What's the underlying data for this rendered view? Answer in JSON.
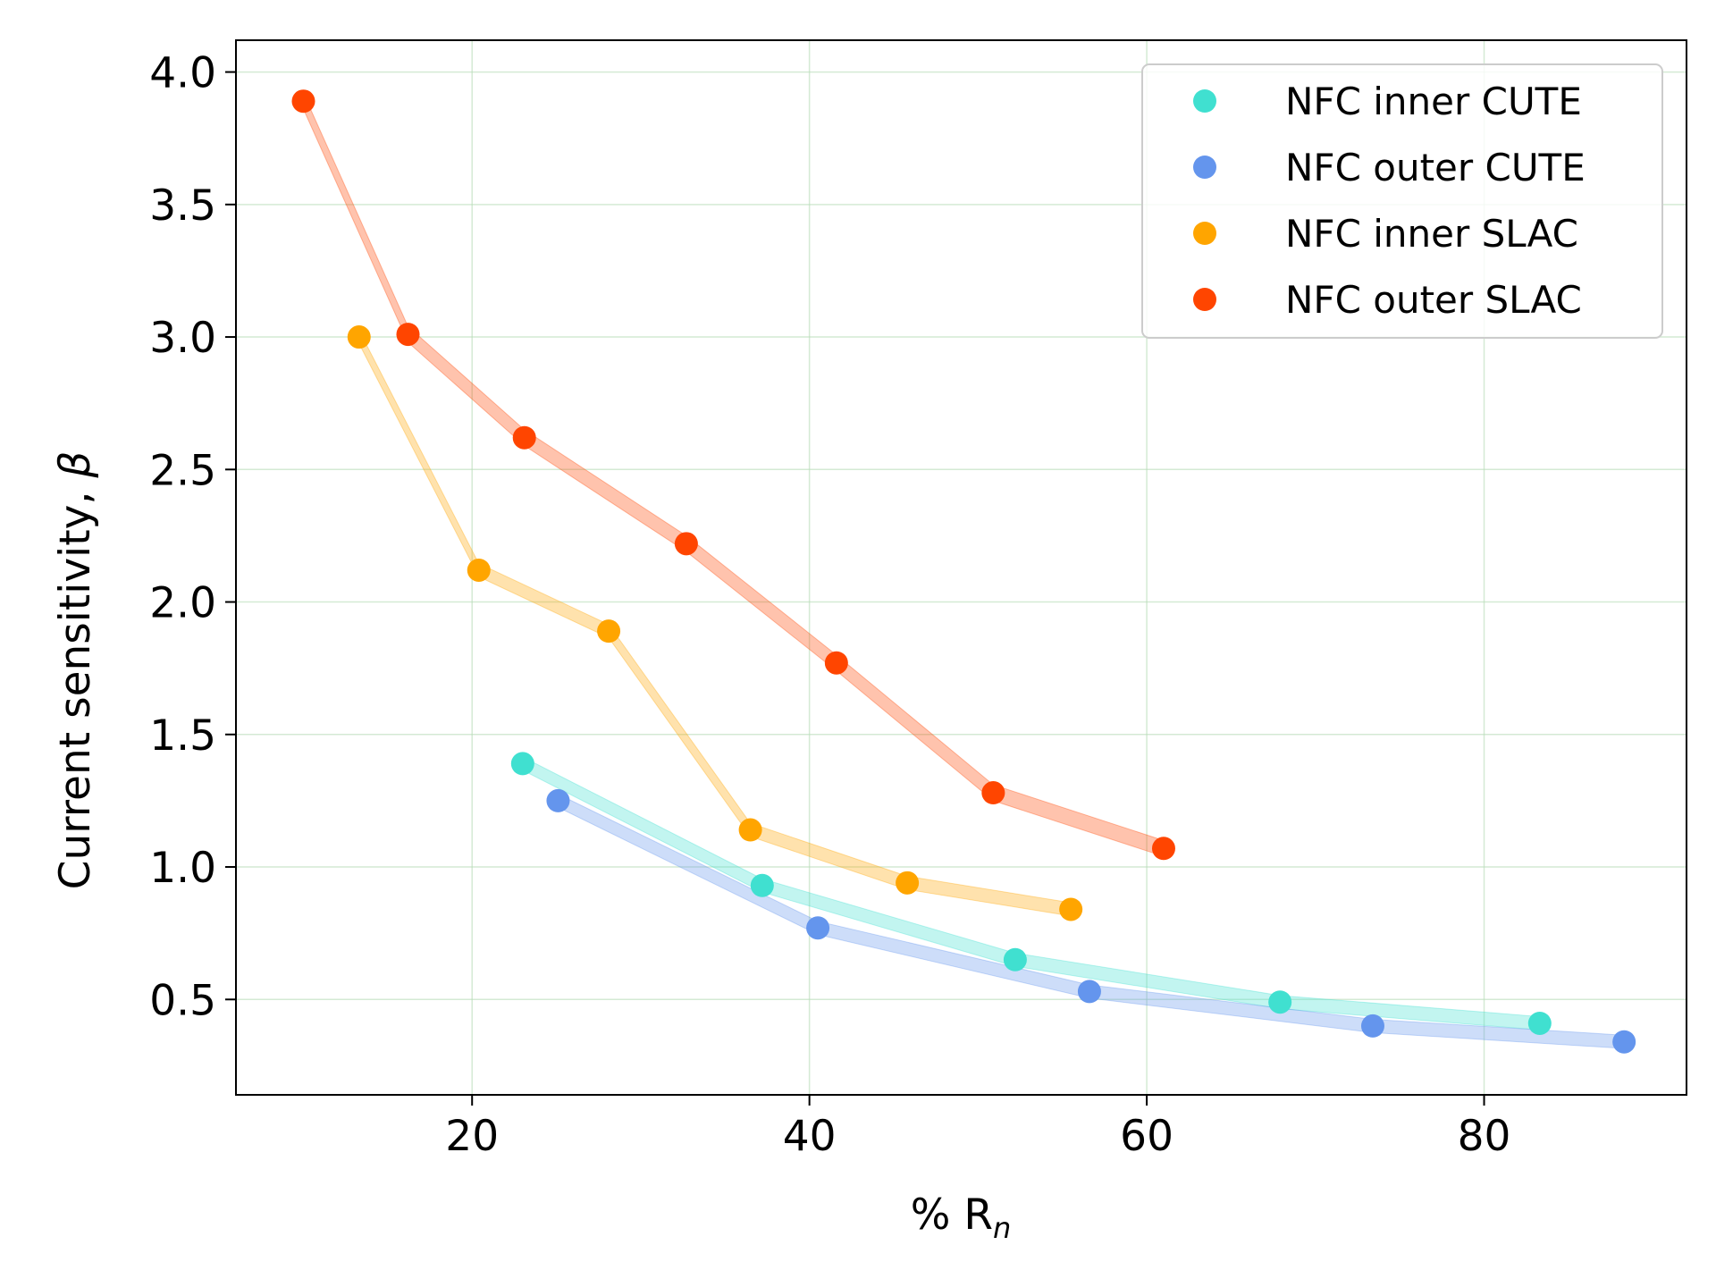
{
  "chart_data": {
    "type": "scatter",
    "title": "",
    "xlabel": "% R",
    "xlabel_subscript": "n",
    "ylabel": "Current sensitivity, ",
    "ylabel_symbol": "β",
    "xlim": [
      6,
      92
    ],
    "ylim": [
      0.14,
      4.12
    ],
    "xticks": [
      20,
      40,
      60,
      80
    ],
    "xtick_labels": [
      "20",
      "40",
      "60",
      "80"
    ],
    "yticks": [
      0.5,
      1.0,
      1.5,
      2.0,
      2.5,
      3.0,
      3.5,
      4.0
    ],
    "ytick_labels": [
      "0.5",
      "1.0",
      "1.5",
      "2.0",
      "2.5",
      "3.0",
      "3.5",
      "4.0"
    ],
    "grid": true,
    "legend_position": "top-right",
    "series": [
      {
        "name": "NFC inner CUTE",
        "color": "#40e0d0",
        "x": [
          23.0,
          37.2,
          52.2,
          67.9,
          83.3
        ],
        "y": [
          1.39,
          0.93,
          0.65,
          0.49,
          0.41
        ],
        "band_halfwidth": 0.025
      },
      {
        "name": "NFC outer CUTE",
        "color": "#6495ed",
        "x": [
          25.1,
          40.5,
          56.6,
          73.4,
          88.3
        ],
        "y": [
          1.25,
          0.77,
          0.53,
          0.4,
          0.34
        ],
        "band_halfwidth": 0.025
      },
      {
        "name": "NFC inner SLAC",
        "color": "#ffa500",
        "x": [
          13.3,
          20.4,
          28.1,
          36.5,
          45.8,
          55.5
        ],
        "y": [
          3.0,
          2.12,
          1.89,
          1.14,
          0.94,
          0.84
        ],
        "band_halfwidth": 0.025
      },
      {
        "name": "NFC outer SLAC",
        "color": "#ff4500",
        "x": [
          10.0,
          16.2,
          23.1,
          32.7,
          41.6,
          50.9,
          61.0
        ],
        "y": [
          3.89,
          3.01,
          2.62,
          2.22,
          1.77,
          1.28,
          1.07
        ],
        "band_halfwidth": 0.03
      }
    ]
  }
}
